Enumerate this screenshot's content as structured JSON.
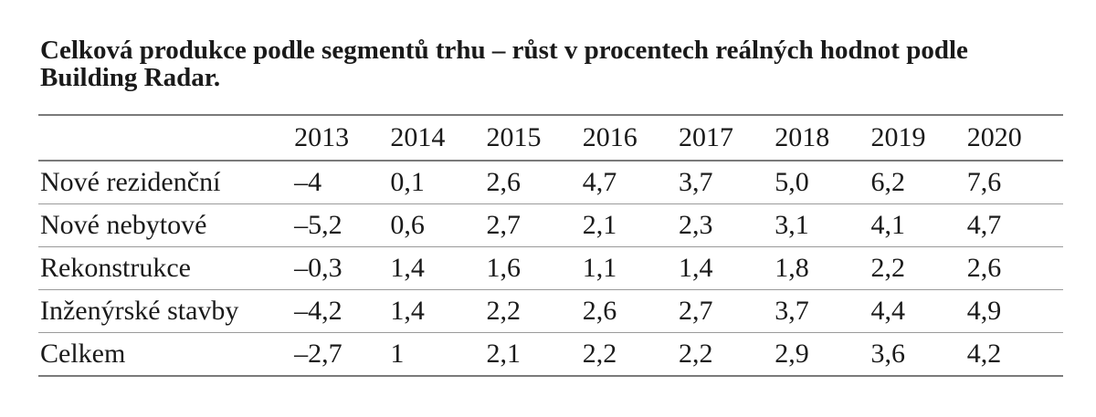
{
  "title": "Celková produkce podle segmentů trhu – růst v procentech reálných hodnot podle Building Radar.",
  "table": {
    "corner": "",
    "years": [
      "2013",
      "2014",
      "2015",
      "2016",
      "2017",
      "2018",
      "2019",
      "2020"
    ],
    "rows": [
      {
        "label": "Nové rezidenční",
        "values": [
          "–4",
          "0,1",
          "2,6",
          "4,7",
          "3,7",
          "5,0",
          "6,2",
          "7,6"
        ]
      },
      {
        "label": "Nové nebytové",
        "values": [
          "–5,2",
          "0,6",
          "2,7",
          "2,1",
          "2,3",
          "3,1",
          "4,1",
          "4,7"
        ]
      },
      {
        "label": "Rekonstrukce",
        "values": [
          "–0,3",
          "1,4",
          "1,6",
          "1,1",
          "1,4",
          "1,8",
          "2,2",
          "2,6"
        ]
      },
      {
        "label": "Inženýrské stavby",
        "values": [
          "–4,2",
          "1,4",
          "2,2",
          "2,6",
          "2,7",
          "3,7",
          "4,4",
          "4,9"
        ]
      },
      {
        "label": "Celkem",
        "values": [
          "–2,7",
          "1",
          "2,1",
          "2,2",
          "2,2",
          "2,9",
          "3,6",
          "4,2"
        ]
      }
    ]
  }
}
